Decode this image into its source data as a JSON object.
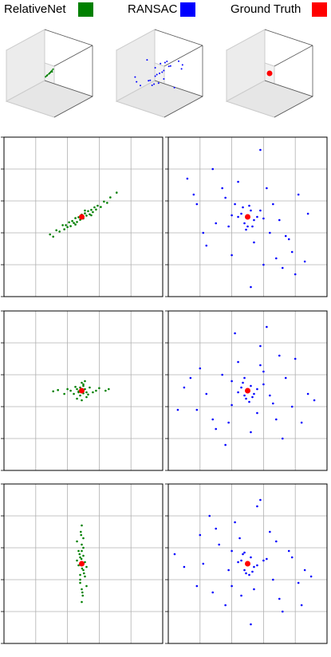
{
  "chart_data": [
    {
      "type": "scatter3d",
      "xlim": [
        -1,
        1
      ],
      "ylim": [
        -1,
        1
      ],
      "zlim": [
        -1,
        1
      ],
      "series": [
        {
          "name": "RelativeNet",
          "color": "#008000",
          "x": [
            0,
            0.05,
            -0.05,
            0.1,
            -0.1,
            0.15,
            -0.15,
            0.2,
            -0.2,
            0.08,
            -0.08,
            0.12,
            -0.12,
            0.03,
            -0.03
          ],
          "y": [
            0,
            0.02,
            -0.03,
            0.04,
            -0.02,
            0.05,
            -0.04,
            0.06,
            -0.05,
            -0.02,
            0.03,
            0.01,
            -0.01,
            0.05,
            -0.05
          ],
          "z": [
            0,
            0.06,
            -0.05,
            0.12,
            -0.1,
            0.18,
            -0.16,
            0.25,
            -0.22,
            0.08,
            -0.1,
            0.1,
            -0.14,
            0.02,
            -0.03
          ]
        }
      ]
    },
    {
      "type": "scatter3d",
      "xlim": [
        -1,
        1
      ],
      "ylim": [
        -1,
        1
      ],
      "zlim": [
        -1,
        1
      ],
      "series": [
        {
          "name": "RANSAC",
          "color": "#0000ff",
          "x": [
            0,
            0.1,
            -0.1,
            0.2,
            -0.2,
            0.3,
            -0.3,
            0.5,
            -0.5,
            0.4,
            -0.4,
            0.7,
            -0.6,
            0.05,
            -0.05,
            0.15,
            -0.15,
            0.8,
            -0.8,
            0.25,
            -0.25,
            0.35,
            -0.35,
            0.6,
            -0.7
          ],
          "y": [
            0,
            -0.1,
            0.1,
            0.3,
            -0.3,
            -0.2,
            0.2,
            0.4,
            -0.4,
            -0.5,
            0.5,
            0.1,
            -0.1,
            0.2,
            -0.2,
            -0.3,
            0.3,
            -0.2,
            0.2,
            0.6,
            -0.6,
            0.05,
            -0.05,
            -0.4,
            0.4
          ],
          "z": [
            0,
            0.1,
            -0.1,
            -0.2,
            0.2,
            0.3,
            -0.3,
            0.1,
            -0.1,
            0.4,
            -0.4,
            -0.3,
            0.3,
            0.05,
            -0.05,
            0.2,
            -0.2,
            0.5,
            -0.5,
            -0.1,
            0.1,
            0.6,
            -0.6,
            0.2,
            -0.2
          ]
        }
      ]
    },
    {
      "type": "scatter3d",
      "xlim": [
        -1,
        1
      ],
      "ylim": [
        -1,
        1
      ],
      "zlim": [
        -1,
        1
      ],
      "series": [
        {
          "name": "Ground Truth",
          "color": "#ff0000",
          "x": [
            0
          ],
          "y": [
            0
          ],
          "z": [
            0
          ]
        }
      ]
    },
    {
      "type": "scatter",
      "xlim": [
        0,
        5
      ],
      "ylim": [
        0,
        5
      ],
      "xticks": [
        0,
        1,
        2,
        3,
        4,
        5
      ],
      "yticks": [
        0,
        1,
        2,
        3,
        4,
        5
      ],
      "grid": true,
      "series": [
        {
          "color": "#008000",
          "x": [
            1.45,
            1.55,
            1.65,
            1.75,
            1.85,
            1.9,
            1.95,
            2.0,
            2.05,
            2.1,
            2.15,
            2.2,
            2.25,
            2.3,
            2.35,
            2.4,
            2.45,
            2.5,
            2.55,
            2.6,
            2.65,
            2.7,
            2.75,
            2.8,
            2.85,
            2.9,
            2.95,
            3.05,
            3.15,
            3.25,
            3.35,
            3.55,
            2.25,
            2.55,
            2.75
          ],
          "y": [
            1.95,
            1.88,
            2.08,
            2.04,
            2.24,
            2.11,
            2.24,
            2.18,
            2.33,
            2.21,
            2.37,
            2.31,
            2.46,
            2.34,
            2.49,
            2.41,
            2.57,
            2.45,
            2.61,
            2.54,
            2.68,
            2.58,
            2.72,
            2.65,
            2.8,
            2.73,
            2.85,
            2.81,
            2.98,
            2.94,
            3.11,
            3.26,
            2.26,
            2.7,
            2.55
          ]
        },
        {
          "color": "#ff0000",
          "x": [
            2.45
          ],
          "y": [
            2.5
          ]
        }
      ]
    },
    {
      "type": "scatter",
      "xlim": [
        0,
        5
      ],
      "ylim": [
        0,
        5
      ],
      "xticks": [
        0,
        1,
        2,
        3,
        4,
        5
      ],
      "yticks": [
        0,
        1,
        2,
        3,
        4,
        5
      ],
      "grid": true,
      "series": [
        {
          "color": "#0000ff",
          "x": [
            2.5,
            2.3,
            2.7,
            2.4,
            2.6,
            2.2,
            2.8,
            2.5,
            2.35,
            2.65,
            2.1,
            2.9,
            1.8,
            3.2,
            1.5,
            3.5,
            0.6,
            4.1,
            1.2,
            3.8,
            0.9,
            3.0,
            2.0,
            4.3,
            1.4,
            3.6,
            3.9,
            4.0,
            3.4,
            2.6,
            2.2,
            1.7,
            3.1,
            0.8,
            2.9,
            1.1,
            3.3,
            4.4,
            2.45,
            2.55,
            2.0,
            3.0,
            1.9,
            2.7,
            3.7
          ],
          "y": [
            2.5,
            2.6,
            2.4,
            2.3,
            2.7,
            2.5,
            2.5,
            2.2,
            2.8,
            2.2,
            2.9,
            2.7,
            3.1,
            2.0,
            2.3,
            2.4,
            3.7,
            3.2,
            1.6,
            1.8,
            2.9,
            1.0,
            1.3,
            1.1,
            4.0,
            0.9,
            1.4,
            0.7,
            1.2,
            0.3,
            3.6,
            3.4,
            3.4,
            3.2,
            4.6,
            2.0,
            2.9,
            2.6,
            2.1,
            2.85,
            2.55,
            2.45,
            2.2,
            1.7,
            1.9
          ]
        },
        {
          "color": "#ff0000",
          "x": [
            2.5
          ],
          "y": [
            2.5
          ]
        }
      ]
    },
    {
      "type": "scatter",
      "xlim": [
        0,
        5
      ],
      "ylim": [
        0,
        5
      ],
      "xticks": [
        0,
        1,
        2,
        3,
        4,
        5
      ],
      "yticks": [
        0,
        1,
        2,
        3,
        4,
        5
      ],
      "grid": true,
      "series": [
        {
          "color": "#008000",
          "x": [
            2.45,
            2.3,
            2.6,
            2.2,
            2.7,
            2.4,
            2.5,
            2.35,
            2.55,
            2.1,
            2.8,
            2.0,
            2.9,
            1.7,
            3.2,
            2.45,
            2.3,
            2.6,
            2.5,
            2.4,
            1.9,
            3.0,
            2.25,
            2.65,
            2.45,
            2.55,
            2.35,
            1.55,
            3.3,
            2.5
          ],
          "y": [
            2.5,
            2.55,
            2.45,
            2.4,
            2.6,
            2.35,
            2.65,
            2.45,
            2.55,
            2.5,
            2.45,
            2.55,
            2.5,
            2.52,
            2.5,
            2.75,
            2.25,
            2.3,
            2.7,
            2.6,
            2.4,
            2.58,
            2.62,
            2.38,
            2.2,
            2.8,
            2.48,
            2.48,
            2.55,
            2.42
          ]
        },
        {
          "color": "#ff0000",
          "x": [
            2.45
          ],
          "y": [
            2.5
          ]
        }
      ]
    },
    {
      "type": "scatter",
      "xlim": [
        0,
        5
      ],
      "ylim": [
        0,
        5
      ],
      "xticks": [
        0,
        1,
        2,
        3,
        4,
        5
      ],
      "yticks": [
        0,
        1,
        2,
        3,
        4,
        5
      ],
      "grid": true,
      "series": [
        {
          "color": "#0000ff",
          "x": [
            2.5,
            2.3,
            2.7,
            2.4,
            2.6,
            2.2,
            2.8,
            2.45,
            2.35,
            2.65,
            2.0,
            3.0,
            1.7,
            3.3,
            1.2,
            3.7,
            0.5,
            4.4,
            0.9,
            4.0,
            1.5,
            3.4,
            2.1,
            4.6,
            1.0,
            3.6,
            2.9,
            1.8,
            3.1,
            2.6,
            2.2,
            0.3,
            3.9,
            1.4,
            2.9,
            0.7,
            3.5,
            4.2,
            2.55,
            2.4,
            2.0,
            3.2,
            1.9,
            2.8,
            3.0
          ],
          "y": [
            2.5,
            2.6,
            2.4,
            2.35,
            2.65,
            2.45,
            2.55,
            2.25,
            2.75,
            2.3,
            2.8,
            2.7,
            3.0,
            2.1,
            2.4,
            2.9,
            2.6,
            2.4,
            1.9,
            3.5,
            1.3,
            1.6,
            4.3,
            2.2,
            3.2,
            1.0,
            3.9,
            0.8,
            4.5,
            1.2,
            3.4,
            1.9,
            2.0,
            1.6,
            3.3,
            2.9,
            3.6,
            1.5,
            2.15,
            2.9,
            2.05,
            2.35,
            1.5,
            1.8,
            3.1
          ]
        },
        {
          "color": "#ff0000",
          "x": [
            2.5
          ],
          "y": [
            2.5
          ]
        }
      ]
    },
    {
      "type": "scatter",
      "xlim": [
        0,
        5
      ],
      "ylim": [
        0,
        5
      ],
      "xticks": [
        0,
        1,
        2,
        3,
        4,
        5
      ],
      "yticks": [
        0,
        1,
        2,
        3,
        4,
        5
      ],
      "grid": true,
      "series": [
        {
          "color": "#008000",
          "x": [
            2.45,
            2.4,
            2.5,
            2.35,
            2.55,
            2.45,
            2.4,
            2.5,
            2.3,
            2.6,
            2.45,
            2.42,
            2.48,
            2.38,
            2.52,
            2.45,
            2.4,
            2.5,
            2.35,
            2.55,
            2.45,
            2.44,
            2.46,
            2.3,
            2.6,
            2.45,
            2.4,
            2.5,
            2.47,
            2.43
          ],
          "y": [
            2.5,
            2.7,
            2.3,
            2.9,
            2.1,
            3.1,
            1.9,
            3.3,
            2.6,
            2.4,
            1.7,
            3.5,
            1.5,
            2.8,
            2.2,
            3.7,
            2.0,
            3.0,
            2.45,
            2.55,
            1.3,
            2.65,
            2.35,
            3.2,
            1.8,
            2.9,
            2.15,
            2.75,
            1.6,
            3.4
          ]
        },
        {
          "color": "#ff0000",
          "x": [
            2.45
          ],
          "y": [
            2.5
          ]
        }
      ]
    },
    {
      "type": "scatter",
      "xlim": [
        0,
        5
      ],
      "ylim": [
        0,
        5
      ],
      "xticks": [
        0,
        1,
        2,
        3,
        4,
        5
      ],
      "yticks": [
        0,
        1,
        2,
        3,
        4,
        5
      ],
      "grid": true,
      "series": [
        {
          "color": "#0000ff",
          "x": [
            2.5,
            2.3,
            2.7,
            2.4,
            2.6,
            2.2,
            2.8,
            2.45,
            2.35,
            2.65,
            2.0,
            3.0,
            1.6,
            3.3,
            1.1,
            3.8,
            0.5,
            4.3,
            1.0,
            4.1,
            1.4,
            3.5,
            2.1,
            4.5,
            1.3,
            3.6,
            2.8,
            1.8,
            3.2,
            2.6,
            2.3,
            0.2,
            3.9,
            1.5,
            2.9,
            0.9,
            3.4,
            4.2,
            2.55,
            2.4,
            1.9,
            3.1,
            2.0,
            2.7,
            2.25
          ],
          "y": [
            2.5,
            2.6,
            2.4,
            2.3,
            2.7,
            2.55,
            2.45,
            2.2,
            2.8,
            2.25,
            2.9,
            2.6,
            3.1,
            2.0,
            2.5,
            2.9,
            2.4,
            2.3,
            3.4,
            1.9,
            1.6,
            1.4,
            3.8,
            2.1,
            4.0,
            1.0,
            4.3,
            1.2,
            3.5,
            0.6,
            1.5,
            2.8,
            2.7,
            3.6,
            4.5,
            1.8,
            3.2,
            1.2,
            2.15,
            2.85,
            2.3,
            2.65,
            1.8,
            1.7,
            3.3
          ]
        },
        {
          "color": "#ff0000",
          "x": [
            2.5
          ],
          "y": [
            2.5
          ]
        }
      ]
    }
  ]
}
